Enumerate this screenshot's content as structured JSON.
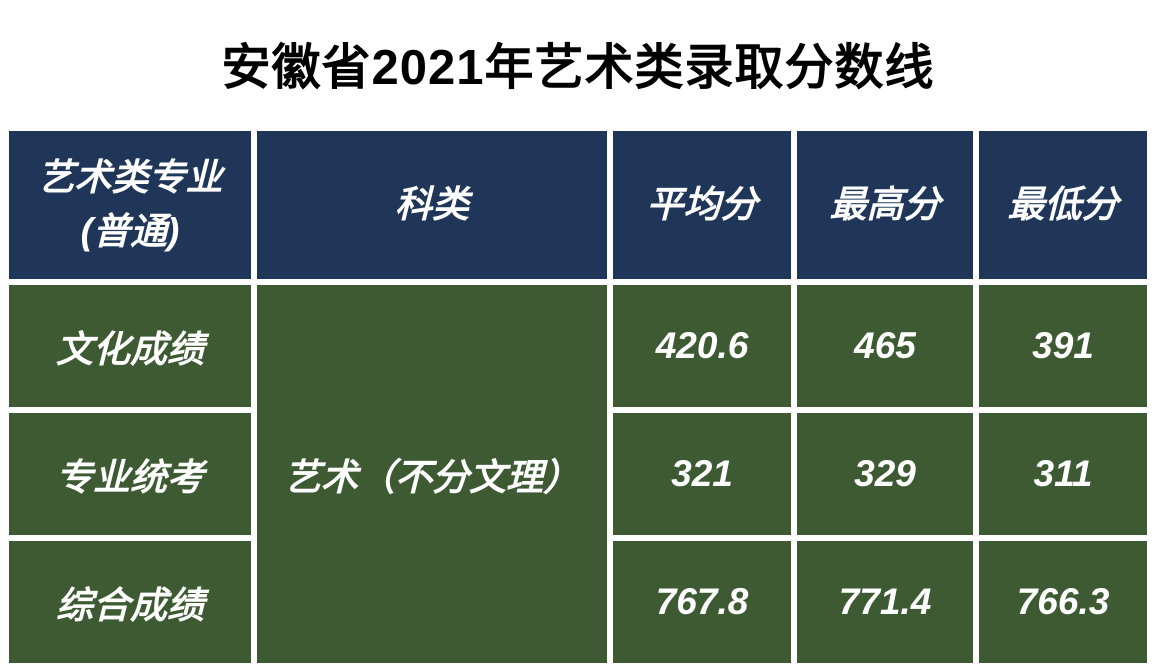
{
  "title": "安徽省2021年艺术类录取分数线",
  "table": {
    "header_bg": "#1f3659",
    "cell_bg": "#3d5a33",
    "text_color": "#ffffff",
    "columns": [
      "艺术类专业\n(普通)",
      "科类",
      "平均分",
      "最高分",
      "最低分"
    ],
    "merged_category": "艺术（不分文理）",
    "rows": [
      {
        "label": "文化成绩",
        "avg": "420.6",
        "max": "465",
        "min": "391"
      },
      {
        "label": "专业统考",
        "avg": "321",
        "max": "329",
        "min": "311"
      },
      {
        "label": "综合成绩",
        "avg": "767.8",
        "max": "771.4",
        "min": "766.3"
      }
    ]
  }
}
